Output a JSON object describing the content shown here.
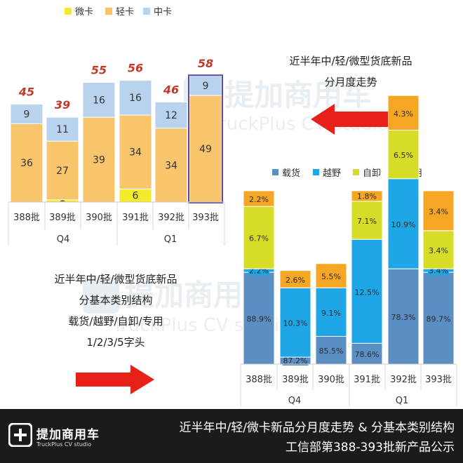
{
  "colors": {
    "micro": "#f2ea2a",
    "light": "#f8c56d",
    "medium": "#b9d3ee",
    "cargo": "#5b8fc4",
    "offroad": "#1fa6e6",
    "dump": "#d7dd27",
    "special": "#f5a623",
    "total_label": "#c0392b",
    "arrow": "#e8201a",
    "highlight_border": "#5b4aa0",
    "footer_bg": "#1b1b1b"
  },
  "captions": {
    "top": [
      "近半年中/轻/微型货底新品",
      "分月度走势"
    ],
    "middle": [
      "近半年中/轻/微型货底新品",
      "分基本类别结构",
      "载货/越野/自卸/专用",
      "1/2/3/5字头"
    ]
  },
  "watermark": {
    "name": "提加商用车",
    "sub": "TruckPlus CV studio"
  },
  "footer": {
    "logo_name": "提加商用车",
    "logo_sub": "TruckPlus CV studio",
    "line1": "近半年中/轻/微卡新品分月度走势 & 分基本类别结构",
    "line2": "工信部第388-393批新产品公示"
  },
  "chart_data": [
    {
      "type": "bar",
      "stacked": true,
      "categories": [
        "388批",
        "389批",
        "390批",
        "391批",
        "392批",
        "393批"
      ],
      "groups": [
        {
          "label": "Q4",
          "categories": [
            "388批",
            "389批",
            "390批"
          ]
        },
        {
          "label": "Q1",
          "categories": [
            "391批",
            "392批",
            "393批"
          ]
        }
      ],
      "series": [
        {
          "name": "微卡",
          "values": [
            0,
            1,
            0,
            6,
            0,
            0
          ]
        },
        {
          "name": "轻卡",
          "values": [
            36,
            27,
            39,
            34,
            34,
            49
          ]
        },
        {
          "name": "中卡",
          "values": [
            9,
            11,
            16,
            16,
            12,
            9
          ]
        }
      ],
      "totals": [
        45,
        39,
        55,
        56,
        46,
        58
      ],
      "highlight_category": "393批",
      "legend": "top",
      "ylim": [
        0,
        65
      ]
    },
    {
      "type": "bar",
      "stacked": true,
      "percent": true,
      "categories": [
        "388批",
        "389批",
        "390批",
        "391批",
        "392批",
        "393批"
      ],
      "groups": [
        {
          "label": "Q4",
          "categories": [
            "388批",
            "389批",
            "390批"
          ]
        },
        {
          "label": "Q1",
          "categories": [
            "391批",
            "392批",
            "393批"
          ]
        }
      ],
      "series": [
        {
          "name": "载货",
          "values": [
            88.9,
            87.2,
            85.5,
            78.6,
            78.3,
            89.7
          ]
        },
        {
          "name": "越野",
          "values": [
            2.2,
            10.3,
            9.1,
            12.5,
            10.9,
            3.4
          ]
        },
        {
          "name": "自卸",
          "values": [
            6.7,
            0,
            0,
            7.1,
            6.5,
            3.4
          ]
        },
        {
          "name": "专用",
          "values": [
            2.2,
            2.6,
            5.5,
            1.8,
            4.3,
            3.4
          ]
        }
      ],
      "legend": "top",
      "ylim": [
        0,
        100
      ]
    }
  ]
}
